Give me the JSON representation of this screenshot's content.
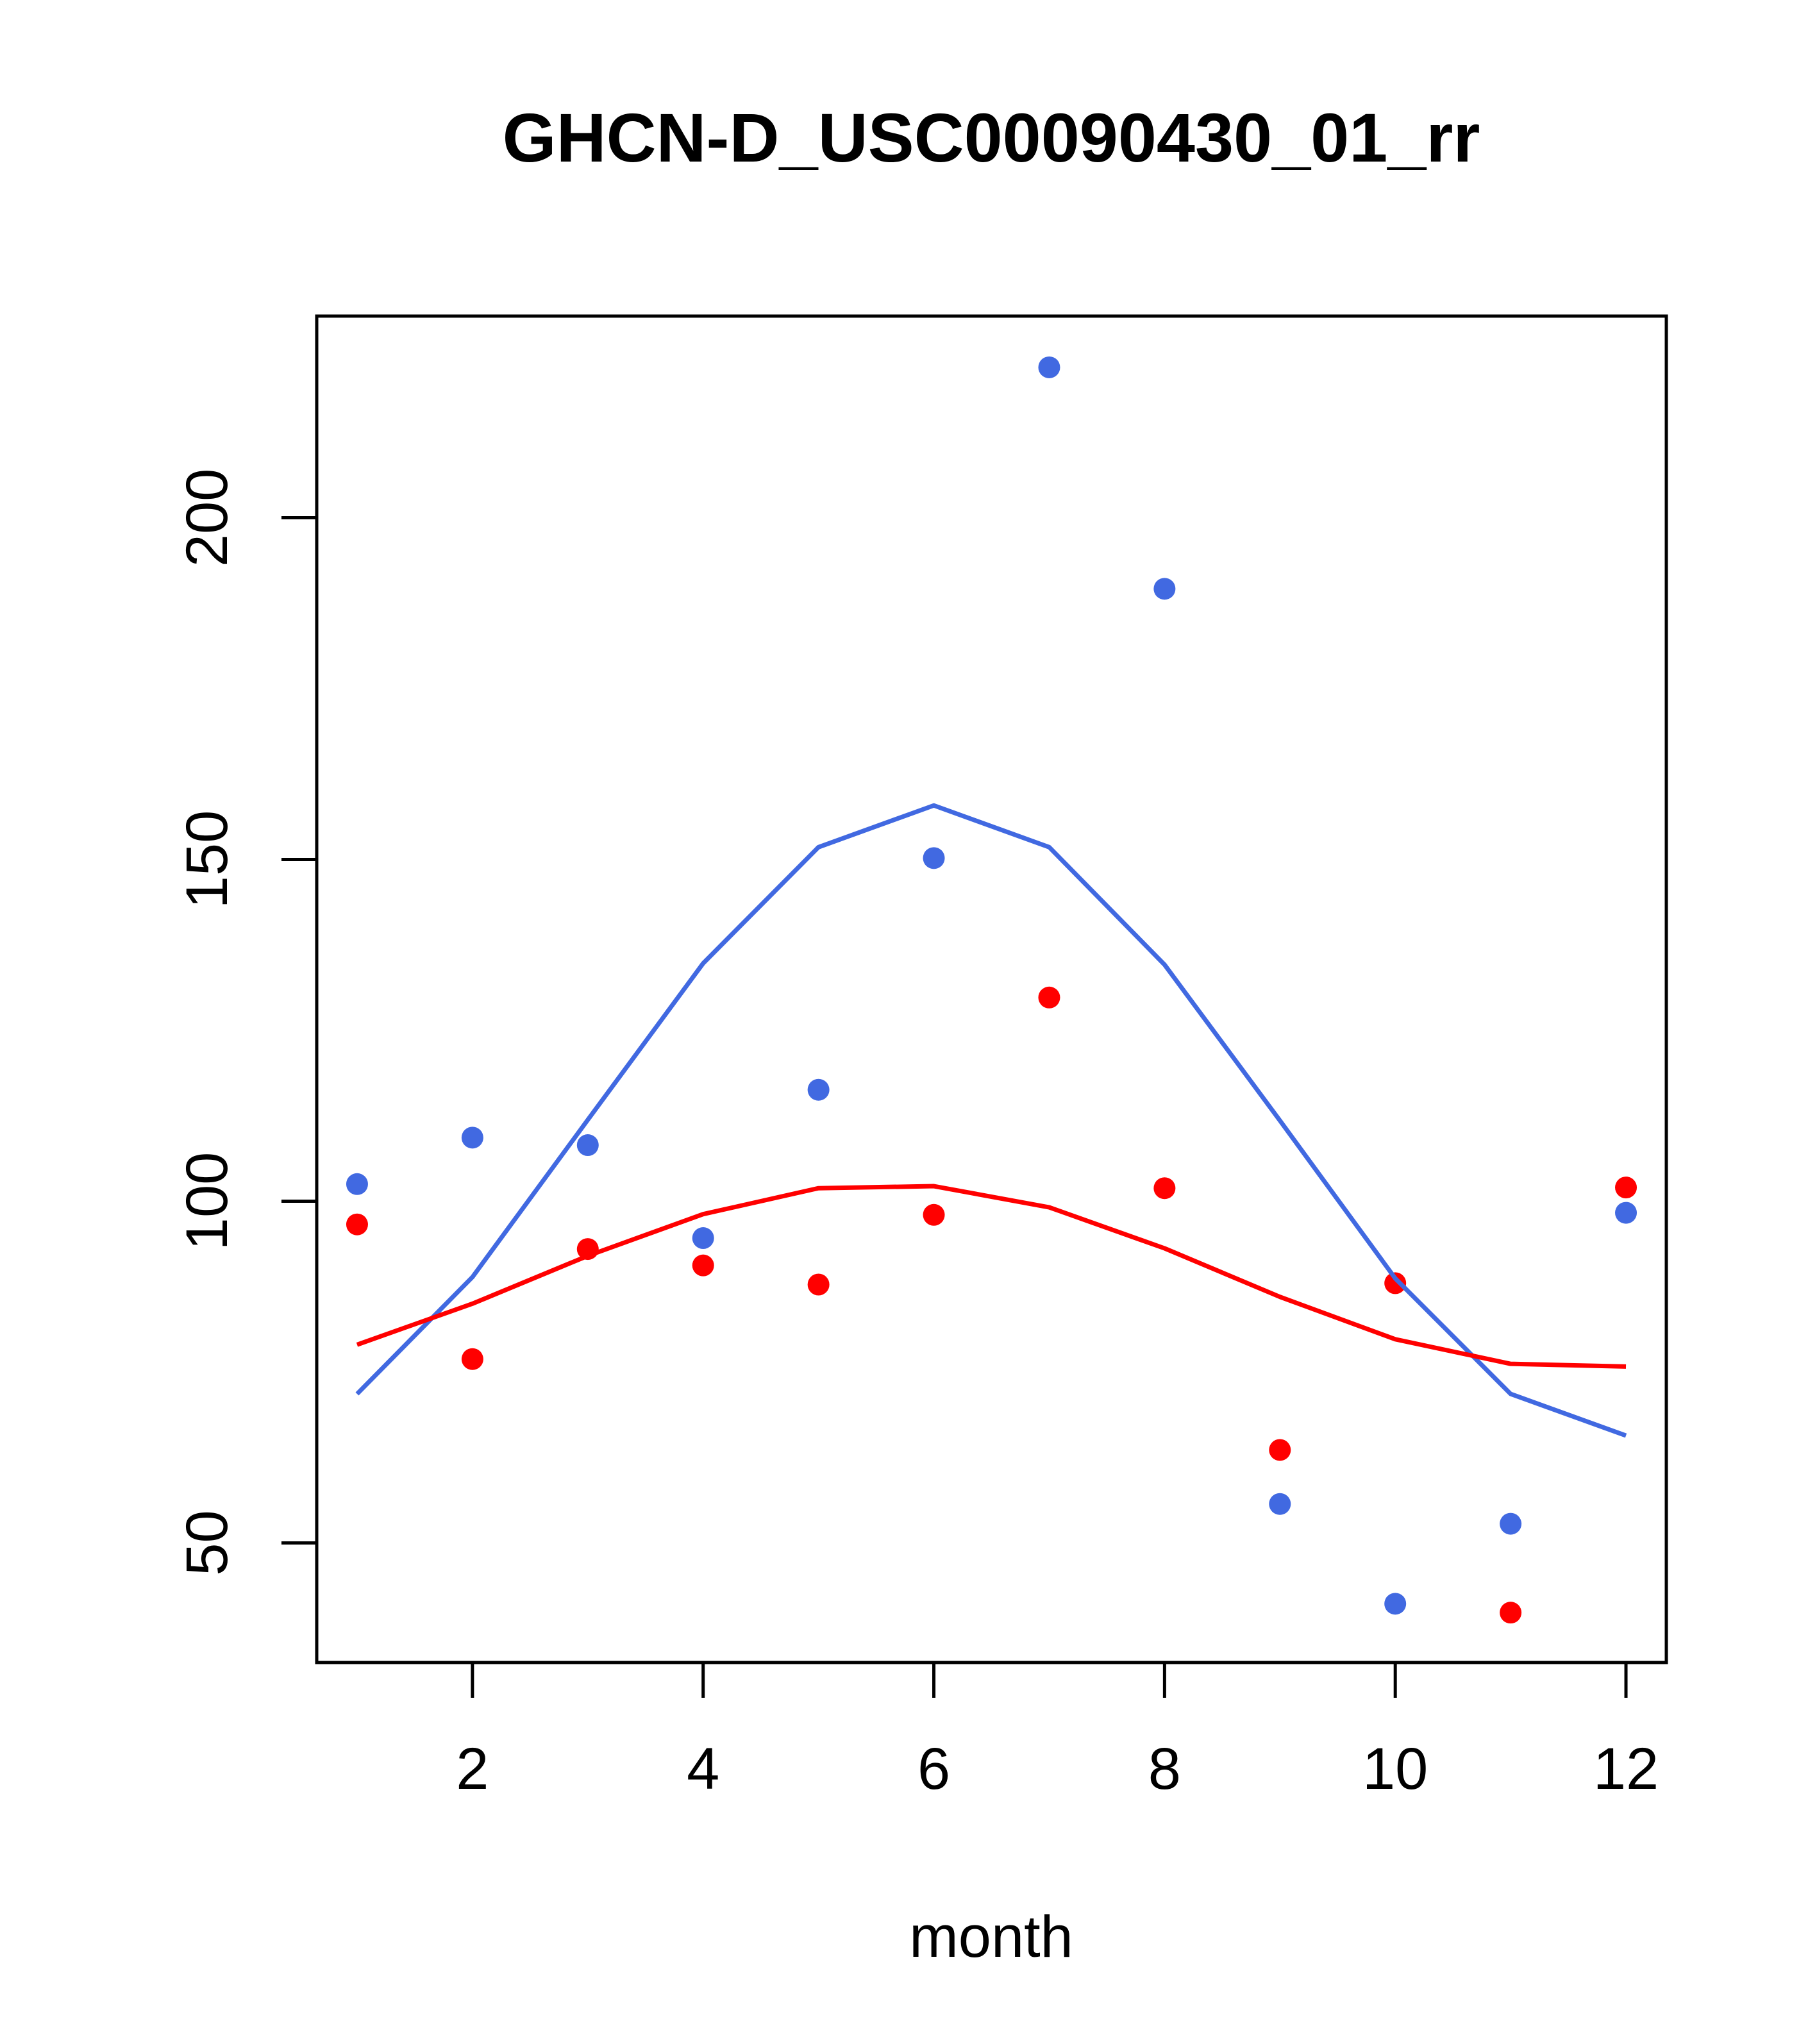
{
  "chart_data": {
    "type": "scatter",
    "title": "GHCN-D_USC00090430_01_rr",
    "xlabel": "month",
    "ylabel": "",
    "xlim": [
      0.65,
      12.35
    ],
    "ylim": [
      32.5,
      229.5
    ],
    "x_ticks": [
      2,
      4,
      6,
      8,
      10,
      12
    ],
    "y_ticks": [
      50,
      100,
      150,
      200
    ],
    "grid": false,
    "series": [
      {
        "kind": "points",
        "color": "#4169E1",
        "x": [
          1,
          2,
          3,
          4,
          5,
          6,
          7,
          8,
          9,
          10,
          11,
          12
        ],
        "y": [
          102.5,
          109.3,
          108.2,
          94.6,
          116.3,
          150.2,
          222.0,
          189.6,
          55.7,
          41.1,
          52.8,
          98.3
        ]
      },
      {
        "kind": "points",
        "color": "#FF0000",
        "x": [
          1,
          2,
          3,
          4,
          5,
          6,
          7,
          8,
          9,
          10,
          11,
          12
        ],
        "y": [
          96.6,
          76.9,
          93.0,
          90.6,
          87.8,
          98.0,
          129.8,
          101.9,
          63.6,
          88.0,
          39.8,
          102.0
        ]
      },
      {
        "kind": "line",
        "color": "#4169E1",
        "x": [
          1,
          2,
          3,
          4,
          5,
          6,
          7,
          8,
          9,
          10,
          11,
          12
        ],
        "y": [
          71.8,
          88.9,
          111.9,
          134.8,
          151.8,
          157.9,
          151.8,
          134.6,
          111.8,
          88.7,
          71.8,
          65.7
        ]
      },
      {
        "kind": "line",
        "color": "#FF0000",
        "x": [
          1,
          2,
          3,
          4,
          5,
          6,
          7,
          8,
          9,
          10,
          11,
          12
        ],
        "y": [
          79.0,
          85.0,
          92.0,
          98.1,
          101.9,
          102.2,
          99.1,
          93.1,
          86.0,
          79.8,
          76.2,
          75.8
        ]
      }
    ]
  }
}
